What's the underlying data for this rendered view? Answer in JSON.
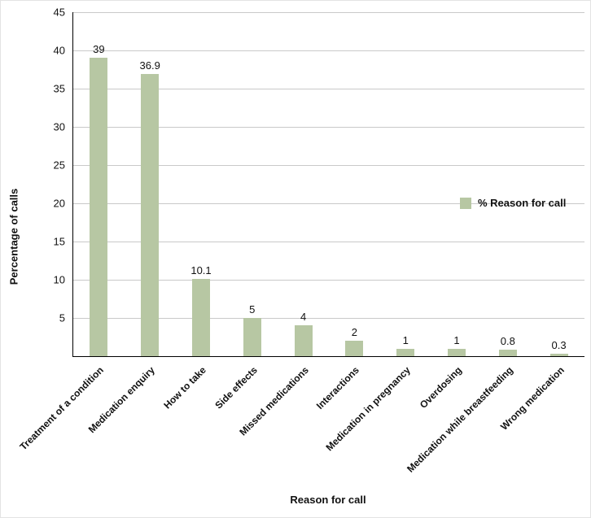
{
  "chart_data": {
    "type": "bar",
    "title": "",
    "xlabel": "Reason for call",
    "ylabel": "Percentage of calls",
    "categories": [
      "Treatment of a condition",
      "Medication enquiry",
      "How to take",
      "Side effects",
      "Missed medications",
      "Interactions",
      "Medication in pregnancy",
      "Overdosing",
      "Medication while breastfeeding",
      "Wrong medication"
    ],
    "values": [
      39,
      36.9,
      10.1,
      5,
      4,
      2,
      1,
      1,
      0.8,
      0.3
    ],
    "value_labels": [
      "39",
      "36.9",
      "10.1",
      "5",
      "4",
      "2",
      "1",
      "1",
      "0.8",
      "0.3"
    ],
    "ylim": [
      0,
      45
    ],
    "yticks": [
      5,
      10,
      15,
      20,
      25,
      30,
      35,
      40,
      45
    ],
    "grid": true,
    "legend": {
      "label": "% Reason for call",
      "position": "right-middle"
    },
    "bar_color": "#b7c7a3",
    "grid_color": "#c9c9c9",
    "axis_color": "#000000",
    "background_color": "#ffffff"
  }
}
